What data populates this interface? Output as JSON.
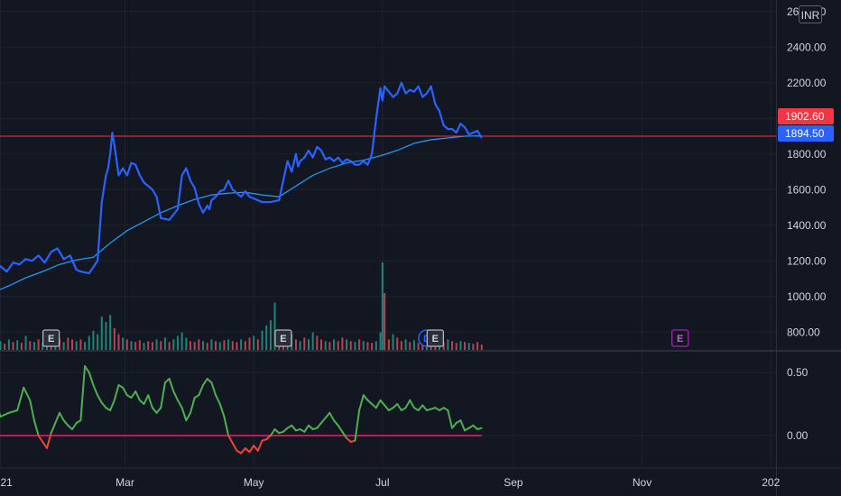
{
  "currency": "INR",
  "colors": {
    "background": "#131722",
    "price_line": "#2962ff",
    "ma_line": "#2196f3",
    "ref_line": "#f23645",
    "vol_up": "#22ab94",
    "vol_down": "#f7525f",
    "osc_up": "#4caf50",
    "osc_down": "#f44336",
    "zero_line": "#c2185b",
    "tag_red": "#f23645",
    "tag_blue": "#2962ff"
  },
  "tags": [
    {
      "label": "1902.60",
      "color": "red"
    },
    {
      "label": "1894.50",
      "color": "blue"
    }
  ],
  "events": [
    {
      "label": "E",
      "style": "white",
      "date": 24
    },
    {
      "label": "E",
      "style": "white",
      "date": 134
    },
    {
      "label": "D",
      "style": "blue",
      "date": 202
    },
    {
      "label": "E",
      "style": "white",
      "date": 206
    },
    {
      "label": "E",
      "style": "purple",
      "date": 322
    }
  ],
  "chart_data": [
    {
      "type": "line",
      "title": "",
      "x_unit": "days since 2021-01-01",
      "x_tick_labels": [
        {
          "label": "2021",
          "x": 0
        },
        {
          "label": "Mar",
          "x": 59
        },
        {
          "label": "May",
          "x": 120
        },
        {
          "label": "Jul",
          "x": 181
        },
        {
          "label": "Sep",
          "x": 243
        },
        {
          "label": "Nov",
          "x": 304
        },
        {
          "label": "202",
          "x": 365
        }
      ],
      "y_tick_labels": [
        "800.00",
        "1000.00",
        "1200.00",
        "1400.00",
        "1600.00",
        "1800.00",
        "2000.00",
        "2200.00",
        "2400.00",
        "2600.00"
      ],
      "ylim": [
        680,
        2700
      ],
      "reference_line": 1900,
      "series": [
        {
          "type": "line",
          "x": [
            -8,
            -4,
            0,
            3,
            6,
            9,
            12,
            15,
            18,
            21,
            24,
            27,
            30,
            33,
            36,
            38,
            42,
            46,
            48,
            50,
            51,
            52,
            53,
            54,
            56,
            58,
            60,
            62,
            64,
            66,
            68,
            70,
            72,
            74,
            76,
            80,
            84,
            86,
            88,
            90,
            92,
            94,
            96,
            98,
            99,
            100,
            102,
            104,
            106,
            108,
            110,
            112,
            114,
            116,
            118,
            120,
            124,
            128,
            132,
            136,
            138,
            140,
            141,
            142,
            144,
            146,
            148,
            150,
            152,
            154,
            156,
            158,
            160,
            162,
            164,
            166,
            168,
            170,
            172,
            174,
            176,
            178,
            180,
            181,
            182,
            184,
            186,
            188,
            190,
            192,
            194,
            196,
            198,
            200,
            202,
            204,
            206,
            208,
            210,
            212,
            214,
            216,
            218,
            220,
            222,
            224,
            226,
            228
          ],
          "values": [
            1180,
            1150,
            1170,
            1140,
            1190,
            1180,
            1210,
            1200,
            1230,
            1190,
            1250,
            1270,
            1210,
            1230,
            1150,
            1140,
            1130,
            1200,
            1530,
            1680,
            1720,
            1800,
            1920,
            1850,
            1680,
            1720,
            1680,
            1750,
            1740,
            1680,
            1640,
            1620,
            1600,
            1560,
            1440,
            1430,
            1490,
            1680,
            1720,
            1650,
            1610,
            1520,
            1470,
            1510,
            1490,
            1540,
            1560,
            1590,
            1600,
            1650,
            1600,
            1580,
            1560,
            1590,
            1560,
            1550,
            1530,
            1530,
            1540,
            1760,
            1700,
            1800,
            1730,
            1760,
            1780,
            1820,
            1780,
            1840,
            1820,
            1770,
            1780,
            1760,
            1780,
            1750,
            1770,
            1760,
            1740,
            1740,
            1760,
            1740,
            1800,
            2000,
            2170,
            2100,
            2180,
            2150,
            2120,
            2140,
            2200,
            2140,
            2160,
            2150,
            2180,
            2120,
            2140,
            2180,
            2080,
            2040,
            1960,
            1940,
            1940,
            1920,
            1970,
            1950,
            1910,
            1920,
            1930,
            1890
          ]
        },
        {
          "type": "line",
          "x": [
            -8,
            4,
            12,
            20,
            28,
            36,
            44,
            52,
            60,
            68,
            76,
            84,
            92,
            100,
            108,
            116,
            124,
            132,
            140,
            148,
            156,
            164,
            172,
            180,
            188,
            196,
            204,
            212,
            220,
            228
          ],
          "values": [
            1000,
            1060,
            1105,
            1140,
            1180,
            1205,
            1220,
            1300,
            1370,
            1420,
            1470,
            1510,
            1545,
            1570,
            1580,
            1585,
            1570,
            1560,
            1620,
            1680,
            1720,
            1750,
            1765,
            1790,
            1820,
            1860,
            1880,
            1890,
            1900,
            1902
          ]
        }
      ]
    },
    {
      "type": "bar",
      "title": "",
      "ylim": [
        0,
        100
      ],
      "series": [
        {
          "x": [
            -8,
            -6,
            -4,
            -2,
            0,
            2,
            4,
            6,
            8,
            10,
            12,
            14,
            16,
            18,
            20,
            22,
            24,
            26,
            28,
            30,
            32,
            34,
            36,
            38,
            40,
            42,
            44,
            46,
            48,
            50,
            52,
            54,
            56,
            58,
            60,
            62,
            64,
            66,
            68,
            70,
            72,
            74,
            76,
            78,
            80,
            82,
            84,
            86,
            88,
            90,
            92,
            94,
            96,
            98,
            100,
            102,
            104,
            106,
            108,
            110,
            112,
            114,
            116,
            118,
            120,
            122,
            124,
            126,
            128,
            130,
            132,
            134,
            136,
            138,
            140,
            142,
            144,
            146,
            148,
            150,
            152,
            154,
            156,
            158,
            160,
            162,
            164,
            166,
            168,
            170,
            172,
            174,
            176,
            178,
            180,
            181,
            182,
            184,
            186,
            188,
            190,
            192,
            194,
            196,
            198,
            200,
            202,
            204,
            206,
            208,
            210,
            212,
            214,
            216,
            218,
            220,
            222,
            224,
            226,
            228
          ],
          "values": [
            12,
            9,
            14,
            8,
            10,
            7,
            12,
            9,
            11,
            8,
            16,
            10,
            9,
            12,
            8,
            10,
            11,
            9,
            13,
            9,
            14,
            12,
            10,
            12,
            9,
            16,
            22,
            18,
            38,
            32,
            40,
            25,
            18,
            14,
            12,
            10,
            9,
            11,
            8,
            10,
            9,
            12,
            10,
            14,
            9,
            12,
            16,
            20,
            14,
            10,
            9,
            12,
            10,
            8,
            12,
            10,
            9,
            11,
            12,
            10,
            9,
            12,
            10,
            14,
            16,
            12,
            22,
            28,
            34,
            54,
            14,
            10,
            22,
            18,
            12,
            10,
            14,
            12,
            20,
            16,
            12,
            10,
            9,
            12,
            10,
            14,
            12,
            10,
            9,
            12,
            10,
            9,
            8,
            10,
            20,
            100,
            65,
            12,
            18,
            14,
            10,
            12,
            9,
            11,
            8,
            10,
            12,
            9,
            10,
            11,
            9,
            12,
            10,
            8,
            10,
            9,
            8,
            7,
            9,
            6
          ],
          "direction": [
            1,
            0,
            1,
            0,
            1,
            0,
            1,
            0,
            1,
            0,
            1,
            0,
            1,
            0,
            1,
            1,
            0,
            1,
            0,
            1,
            0,
            0,
            1,
            0,
            1,
            1,
            1,
            1,
            1,
            1,
            1,
            0,
            0,
            1,
            0,
            1,
            0,
            0,
            1,
            0,
            0,
            1,
            0,
            1,
            0,
            1,
            1,
            1,
            1,
            0,
            0,
            0,
            1,
            0,
            1,
            0,
            1,
            0,
            1,
            0,
            0,
            1,
            0,
            0,
            1,
            0,
            1,
            1,
            1,
            1,
            0,
            0,
            1,
            1,
            0,
            1,
            0,
            1,
            1,
            0,
            0,
            1,
            0,
            1,
            0,
            0,
            1,
            0,
            1,
            0,
            1,
            0,
            0,
            1,
            1,
            1,
            0,
            0,
            1,
            0,
            0,
            1,
            0,
            1,
            0,
            0,
            1,
            0,
            0,
            1,
            0,
            1,
            0,
            0,
            1,
            0,
            1,
            0,
            0,
            0
          ]
        }
      ]
    },
    {
      "type": "line",
      "title": "",
      "y_tick_labels": [
        "0.00",
        "0.50"
      ],
      "ylim": [
        -0.17,
        0.62
      ],
      "series": [
        {
          "type": "line",
          "x": [
            -8,
            -4,
            0,
            4,
            8,
            11,
            14,
            16,
            18,
            20,
            22,
            24,
            26,
            28,
            30,
            32,
            34,
            36,
            38,
            40,
            42,
            44,
            46,
            48,
            50,
            52,
            54,
            56,
            58,
            60,
            62,
            64,
            66,
            68,
            70,
            72,
            74,
            76,
            78,
            80,
            82,
            84,
            86,
            88,
            90,
            92,
            94,
            96,
            98,
            100,
            102,
            104,
            106,
            108,
            110,
            112,
            114,
            116,
            118,
            120,
            122,
            124,
            126,
            128,
            130,
            132,
            134,
            136,
            138,
            140,
            142,
            144,
            146,
            148,
            150,
            152,
            154,
            156,
            158,
            160,
            162,
            164,
            166,
            168,
            170,
            172,
            174,
            176,
            178,
            180,
            182,
            184,
            186,
            188,
            190,
            192,
            194,
            196,
            198,
            200,
            202,
            204,
            206,
            208,
            210,
            212,
            214,
            216,
            218,
            220,
            222,
            224,
            226,
            228
          ],
          "values": [
            0.25,
            0.35,
            0.15,
            0.18,
            0.2,
            0.38,
            0.28,
            0.12,
            0.0,
            -0.05,
            -0.1,
            0.02,
            0.1,
            0.18,
            0.12,
            0.08,
            0.05,
            0.1,
            0.12,
            0.55,
            0.5,
            0.4,
            0.32,
            0.26,
            0.22,
            0.2,
            0.28,
            0.4,
            0.38,
            0.32,
            0.3,
            0.35,
            0.28,
            0.25,
            0.32,
            0.22,
            0.18,
            0.22,
            0.42,
            0.45,
            0.35,
            0.28,
            0.22,
            0.12,
            0.18,
            0.3,
            0.32,
            0.4,
            0.45,
            0.42,
            0.32,
            0.25,
            0.15,
            0.0,
            -0.06,
            -0.12,
            -0.14,
            -0.1,
            -0.13,
            -0.08,
            -0.12,
            -0.04,
            -0.03,
            0.0,
            0.05,
            0.02,
            0.03,
            0.06,
            0.08,
            0.04,
            0.05,
            0.03,
            0.08,
            0.05,
            0.06,
            0.1,
            0.14,
            0.18,
            0.12,
            0.08,
            0.03,
            -0.02,
            -0.05,
            -0.04,
            0.2,
            0.32,
            0.28,
            0.25,
            0.22,
            0.28,
            0.24,
            0.2,
            0.22,
            0.25,
            0.2,
            0.22,
            0.28,
            0.22,
            0.2,
            0.24,
            0.2,
            0.21,
            0.22,
            0.2,
            0.22,
            0.2,
            0.06,
            0.1,
            0.12,
            0.04,
            0.06,
            0.08,
            0.05,
            0.06
          ]
        }
      ]
    }
  ]
}
